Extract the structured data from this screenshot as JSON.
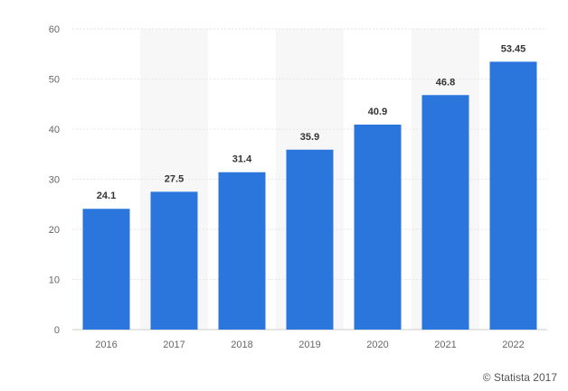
{
  "chart_data": {
    "type": "bar",
    "categories": [
      "2016",
      "2017",
      "2018",
      "2019",
      "2020",
      "2021",
      "2022"
    ],
    "values": [
      24.1,
      27.5,
      31.4,
      35.9,
      40.9,
      46.8,
      53.45
    ],
    "value_labels": [
      "24.1",
      "27.5",
      "31.4",
      "35.9",
      "40.9",
      "46.8",
      "53.45"
    ],
    "ylim": [
      0,
      60
    ],
    "yticks": [
      0,
      10,
      20,
      30,
      40,
      50,
      60
    ],
    "grid": true,
    "bar_color": "#2a76dd",
    "alternate_band_color": "#f7f7f7"
  },
  "credit": "© Statista 2017"
}
